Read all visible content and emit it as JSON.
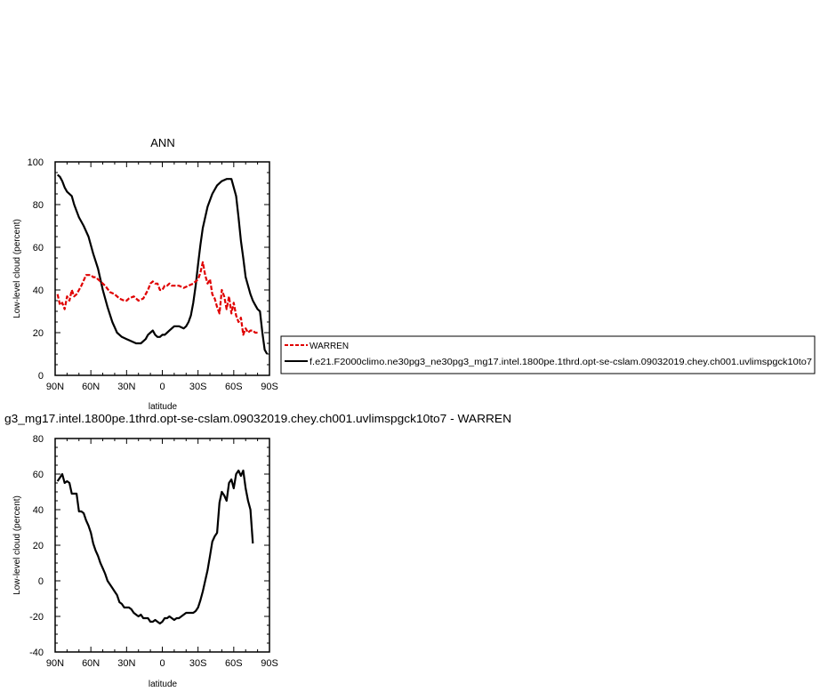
{
  "chart_data": [
    {
      "type": "line",
      "title": "ANN",
      "xlabel": "latitude",
      "ylabel": "Low-level cloud (percent)",
      "xlim": [
        -90,
        90
      ],
      "ylim": [
        0,
        100
      ],
      "x_ticks": [
        -90,
        -60,
        -30,
        0,
        30,
        60,
        90
      ],
      "x_tick_labels": [
        "90N",
        "60N",
        "30N",
        "0",
        "30S",
        "60S",
        "90S"
      ],
      "y_ticks": [
        0,
        20,
        40,
        60,
        80,
        100
      ],
      "y_tick_labels": [
        "0",
        "20",
        "40",
        "60",
        "80",
        "100"
      ],
      "legend": {
        "position": "right",
        "entries": [
          {
            "label": "WARREN",
            "color": "#e00000",
            "style": "dashed"
          },
          {
            "label": "f.e21.F2000climo.ne30pg3_ne30pg3_mg17.intel.1800pe.1thrd.opt-se-cslam.09032019.chey.ch001.uvlimspgck10to7",
            "color": "#000000",
            "style": "solid"
          }
        ]
      },
      "series": [
        {
          "name": "f.e21.F2000climo.ne30pg3_ne30pg3_mg17.intel.1800pe.1thrd.opt-se-cslam.09032019.chey.ch001.uvlimspgck10to7",
          "color": "#000000",
          "style": "solid",
          "x": [
            -88,
            -86,
            -84,
            -82,
            -80,
            -76,
            -74,
            -72,
            -70,
            -66,
            -62,
            -58,
            -54,
            -50,
            -46,
            -42,
            -38,
            -34,
            -30,
            -26,
            -22,
            -18,
            -14,
            -12,
            -10,
            -8,
            -6,
            -4,
            -2,
            0,
            2,
            4,
            6,
            8,
            10,
            14,
            18,
            20,
            22,
            24,
            26,
            28,
            30,
            32,
            34,
            38,
            42,
            46,
            50,
            54,
            58,
            62,
            64,
            66,
            68,
            70,
            72,
            74,
            76,
            78,
            80,
            82,
            84,
            86,
            88
          ],
          "y": [
            94,
            93,
            91,
            88,
            86,
            84,
            80,
            77,
            74,
            70,
            65,
            57,
            50,
            40,
            32,
            25,
            20,
            18,
            17,
            16,
            15,
            15,
            17,
            19,
            20,
            21,
            19,
            18,
            18,
            19,
            19,
            20,
            21,
            22,
            23,
            23,
            22,
            23,
            25,
            28,
            34,
            42,
            52,
            61,
            69,
            79,
            85,
            89,
            91,
            92,
            92,
            84,
            74,
            63,
            55,
            46,
            42,
            38,
            35,
            33,
            31,
            30,
            20,
            12,
            10
          ]
        },
        {
          "name": "WARREN",
          "color": "#e00000",
          "style": "dashed",
          "x": [
            -88,
            -86,
            -84,
            -82,
            -80,
            -78,
            -76,
            -74,
            -72,
            -70,
            -68,
            -64,
            -62,
            -60,
            -58,
            -56,
            -52,
            -48,
            -44,
            -40,
            -36,
            -32,
            -30,
            -28,
            -24,
            -20,
            -16,
            -12,
            -10,
            -8,
            -6,
            -4,
            -2,
            0,
            2,
            4,
            6,
            8,
            10,
            14,
            18,
            22,
            26,
            30,
            32,
            34,
            36,
            38,
            40,
            42,
            44,
            46,
            48,
            50,
            52,
            54,
            56,
            58,
            60,
            62,
            64,
            66,
            68,
            70,
            72,
            74,
            76,
            78,
            80
          ],
          "y": [
            38,
            33,
            34,
            31,
            37,
            35,
            40,
            37,
            38,
            40,
            42,
            47,
            47,
            47,
            46,
            46,
            44,
            42,
            39,
            38,
            36,
            35,
            35,
            36,
            37,
            35,
            36,
            40,
            43,
            44,
            43,
            43,
            40,
            40,
            42,
            42,
            43,
            42,
            42,
            42,
            41,
            42,
            43,
            45,
            48,
            53,
            47,
            43,
            45,
            38,
            36,
            32,
            29,
            40,
            37,
            31,
            37,
            29,
            34,
            28,
            25,
            27,
            19,
            22,
            20,
            21,
            21,
            20,
            20
          ]
        }
      ]
    },
    {
      "type": "line",
      "title": "g3_mg17.intel.1800pe.1thrd.opt-se-cslam.09032019.chey.ch001.uvlimspgck10to7 - WARREN",
      "xlabel": "latitude",
      "ylabel": "Low-level cloud (percent)",
      "xlim": [
        -90,
        90
      ],
      "ylim": [
        -40,
        80
      ],
      "x_ticks": [
        -90,
        -60,
        -30,
        0,
        30,
        60,
        90
      ],
      "x_tick_labels": [
        "90N",
        "60N",
        "30N",
        "0",
        "30S",
        "60S",
        "90S"
      ],
      "y_ticks": [
        -40,
        -20,
        0,
        20,
        40,
        60,
        80
      ],
      "y_tick_labels": [
        "-40",
        "-20",
        "0",
        "20",
        "40",
        "60",
        "80"
      ],
      "series": [
        {
          "color": "#000000",
          "style": "solid",
          "x": [
            -88,
            -86,
            -84,
            -82,
            -80,
            -78,
            -76,
            -74,
            -72,
            -70,
            -68,
            -66,
            -64,
            -62,
            -60,
            -58,
            -56,
            -54,
            -52,
            -50,
            -48,
            -46,
            -44,
            -42,
            -40,
            -38,
            -36,
            -34,
            -32,
            -30,
            -28,
            -26,
            -24,
            -22,
            -20,
            -18,
            -16,
            -14,
            -12,
            -10,
            -8,
            -6,
            -4,
            -2,
            0,
            2,
            4,
            6,
            8,
            10,
            12,
            14,
            16,
            18,
            20,
            22,
            24,
            26,
            28,
            30,
            32,
            34,
            36,
            38,
            40,
            42,
            44,
            46,
            48,
            50,
            52,
            54,
            56,
            58,
            60,
            62,
            64,
            66,
            68,
            70,
            72,
            74,
            76
          ],
          "y": [
            56,
            58,
            60,
            55,
            56,
            55,
            49,
            49,
            49,
            39,
            39,
            38,
            34,
            31,
            27,
            21,
            17,
            14,
            10,
            7,
            4,
            0,
            -2,
            -4,
            -6,
            -8,
            -12,
            -13,
            -15,
            -15,
            -15,
            -16,
            -18,
            -19,
            -20,
            -19,
            -21,
            -21,
            -21,
            -23,
            -23,
            -22,
            -23,
            -24,
            -23,
            -21,
            -21,
            -20,
            -21,
            -22,
            -21,
            -21,
            -20,
            -19,
            -18,
            -18,
            -18,
            -18,
            -17,
            -15,
            -11,
            -6,
            0,
            6,
            14,
            22,
            25,
            27,
            44,
            50,
            48,
            45,
            55,
            57,
            52,
            60,
            62,
            59,
            62,
            52,
            45,
            40,
            21
          ]
        }
      ]
    }
  ]
}
